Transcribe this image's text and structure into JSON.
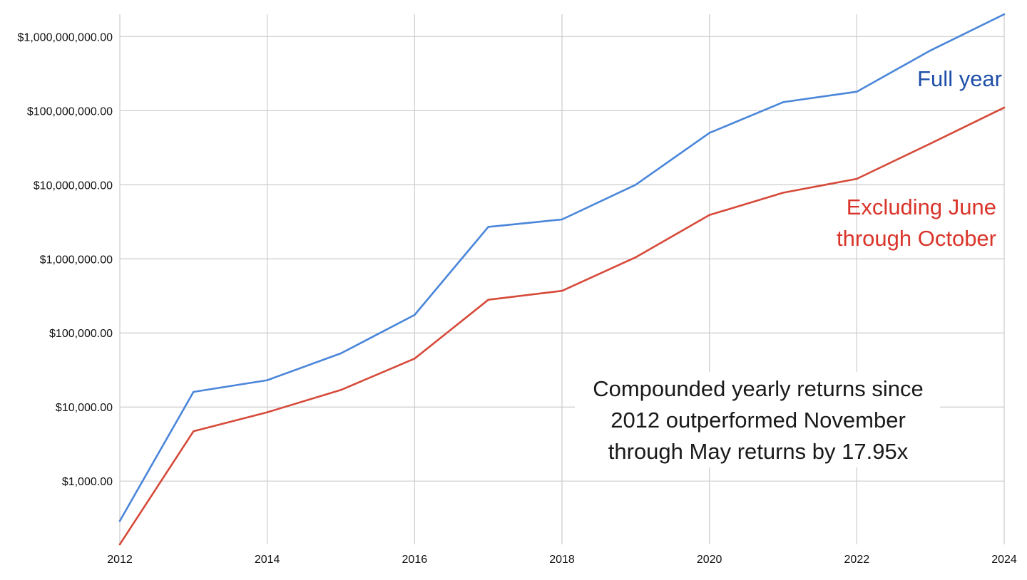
{
  "chart_data": {
    "type": "line",
    "title": "",
    "xlabel": "",
    "ylabel": "",
    "y_scale": "log",
    "ylim": [
      140,
      2000000000
    ],
    "xlim": [
      2012,
      2024
    ],
    "grid": true,
    "legend": "none",
    "x_ticks": [
      2012,
      2014,
      2016,
      2018,
      2020,
      2022,
      2024
    ],
    "x_tick_labels": [
      "2012",
      "2014",
      "2016",
      "2018",
      "2020",
      "2022",
      "2024"
    ],
    "y_ticks": [
      1000,
      10000,
      100000,
      1000000,
      10000000,
      100000000,
      1000000000
    ],
    "y_tick_labels": [
      "$1,000.00",
      "$10,000.00",
      "$100,000.00",
      "$1,000,000.00",
      "$10,000,000.00",
      "$100,000,000.00",
      "$1,000,000,000.00"
    ],
    "x": [
      2012,
      2013,
      2014,
      2015,
      2016,
      2017,
      2018,
      2019,
      2020,
      2021,
      2022,
      2023,
      2024
    ],
    "series": [
      {
        "name": "Full year",
        "color": "#4a86d9",
        "label_color": "#1f4fa8",
        "values": [
          290,
          16000,
          23000,
          53000,
          175000,
          2700000,
          3400000,
          10000000,
          50000000,
          130000000,
          180000000,
          650000000,
          2000000000
        ]
      },
      {
        "name": "Excluding June through October",
        "color": "#d64a3a",
        "label_color": "#d9352b",
        "values": [
          140,
          4700,
          8500,
          17000,
          45000,
          280000,
          370000,
          1050000,
          3900000,
          7800000,
          12000000,
          36000000,
          110000000
        ]
      }
    ],
    "series_label_lines": [
      [
        "Full year"
      ],
      [
        "Excluding June",
        "through October"
      ]
    ],
    "annotation": {
      "lines": [
        "Compounded yearly returns since",
        "2012 outperformed November",
        "through May returns by 17.95x"
      ]
    }
  }
}
